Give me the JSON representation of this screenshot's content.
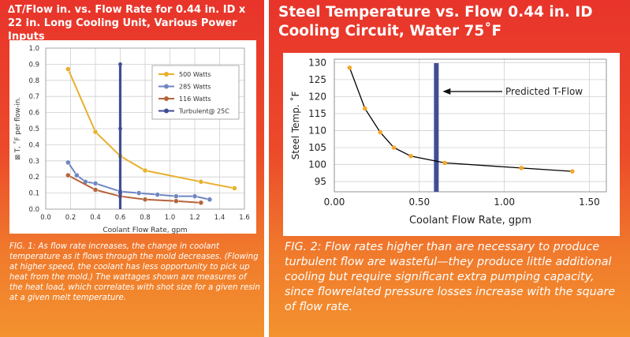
{
  "colors": {
    "yellow": "#e8b02b",
    "blue": "#6f86c2",
    "brown": "#b5643a",
    "navy": "#3f4e95",
    "pointYellow": "#f3a82a"
  },
  "left": {
    "title": "∆T/Flow in. vs. Flow Rate for 0.44 in. ID x 22 in. Long Cooling Unit, Various Power Inputs",
    "caption": "FIG. 1: As flow rate increases, the change in coolant temperature as it flows through the mold decreases. (Flowing at higher speed, the coolant has less opportunity to pick up heat from the mold.) The wattages shown are measures of the heat load, which correlates with shot size for a given resin at a given melt temperature."
  },
  "right": {
    "title": "Steel Temperature vs. Flow 0.44 in. ID Cooling Circuit, Water 75˚F",
    "caption": "FIG. 2: Flow rates higher than are necessary to produce turbulent flow are wasteful—they produce little additional cooling but require significant extra pumping capacity, since flowrelated pressure losses increase with the square of flow rate."
  },
  "chart_data": [
    {
      "type": "line",
      "xlabel": "Coolant Flow Rate, gpm",
      "ylabel": "⊠ T, ˚F per flow-in.",
      "xlim": [
        0,
        1.6
      ],
      "ylim": [
        0,
        1.0
      ],
      "xticks": [
        "0.0",
        "0.2",
        "0.4",
        "0.6",
        "0.8",
        "1.0",
        "1.2",
        "1.4",
        "1.6"
      ],
      "yticks": [
        "0.0",
        "0.1",
        "0.2",
        "0.3",
        "0.4",
        "0.5",
        "0.6",
        "0.7",
        "0.8",
        "0.9",
        "1.0"
      ],
      "legend_position": "top-right",
      "series": [
        {
          "name": "500 Watts",
          "color": "#e8b02b",
          "x": [
            0.18,
            0.4,
            0.6,
            0.8,
            1.25,
            1.52
          ],
          "y": [
            0.87,
            0.48,
            0.33,
            0.24,
            0.17,
            0.13
          ]
        },
        {
          "name": "285 Watts",
          "color": "#6f86c2",
          "x": [
            0.18,
            0.25,
            0.32,
            0.4,
            0.6,
            0.75,
            0.9,
            1.05,
            1.2,
            1.32
          ],
          "y": [
            0.29,
            0.21,
            0.17,
            0.16,
            0.11,
            0.1,
            0.09,
            0.08,
            0.08,
            0.06
          ]
        },
        {
          "name": "116 Watts",
          "color": "#b5643a",
          "x": [
            0.18,
            0.4,
            0.6,
            0.8,
            1.05,
            1.25
          ],
          "y": [
            0.21,
            0.12,
            0.08,
            0.06,
            0.05,
            0.04
          ]
        },
        {
          "name": "Turbulent@ 25C",
          "color": "#3f4e95",
          "x": [
            0.6,
            0.6,
            0.6,
            0.6
          ],
          "y": [
            0.9,
            0.5,
            0.1,
            0.0
          ]
        }
      ]
    },
    {
      "type": "line",
      "xlabel": "Coolant Flow Rate, gpm",
      "ylabel": "Steel Temp. ˚F",
      "xlim": [
        0,
        1.6
      ],
      "ylim": [
        92,
        131
      ],
      "xticks": [
        {
          "v": 0,
          "l": "0.00"
        },
        {
          "v": 0.5,
          "l": "0.50"
        },
        {
          "v": 1.0,
          "l": "1.00"
        },
        {
          "v": 1.5,
          "l": "1.50"
        }
      ],
      "yticks": [
        95,
        100,
        105,
        110,
        115,
        120,
        125,
        130
      ],
      "annotation": "Predicted T-Flow",
      "turbulent_x": 0.6,
      "series": [
        {
          "name": "",
          "color": "#000000",
          "x": [
            0.09,
            0.18,
            0.27,
            0.35,
            0.45,
            0.65,
            1.1,
            1.4
          ],
          "y": [
            128.5,
            116.5,
            109.5,
            105,
            102.5,
            100.5,
            99,
            98
          ]
        }
      ]
    }
  ]
}
